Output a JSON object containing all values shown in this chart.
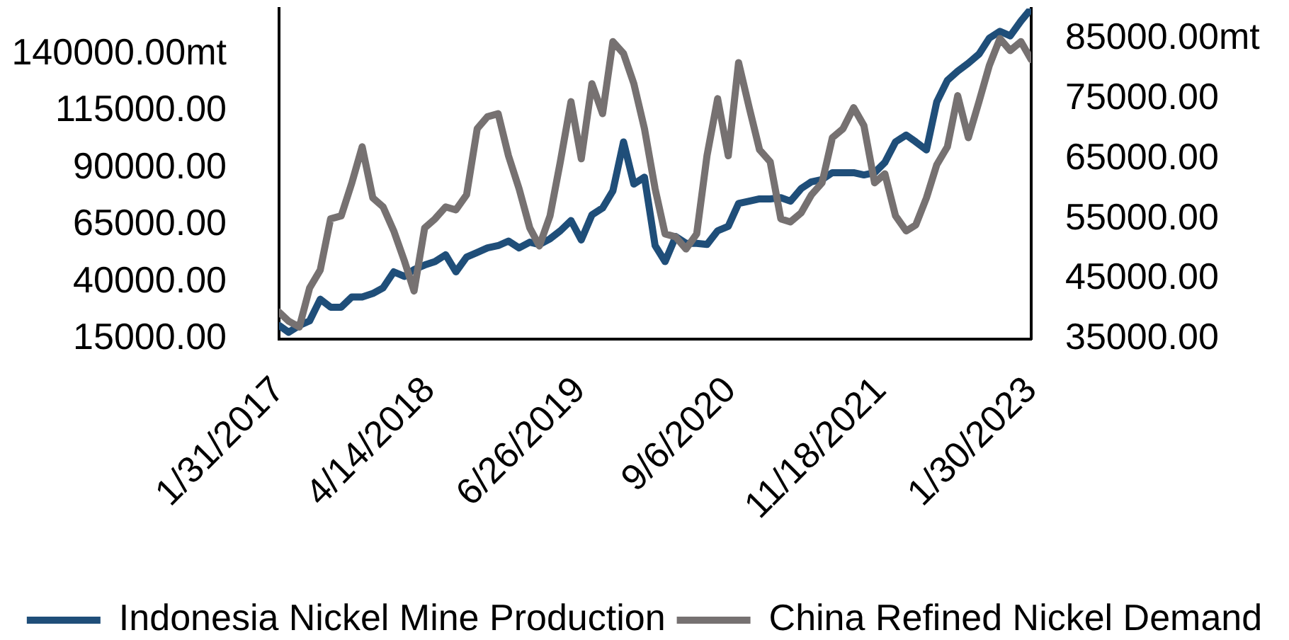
{
  "chart_data": {
    "type": "line",
    "x": [
      "2017-01-31",
      "2017-02-28",
      "2017-03-31",
      "2017-04-30",
      "2017-05-31",
      "2017-06-30",
      "2017-07-31",
      "2017-08-31",
      "2017-09-30",
      "2017-10-31",
      "2017-11-30",
      "2017-12-31",
      "2018-01-31",
      "2018-02-28",
      "2018-03-31",
      "2018-04-30",
      "2018-05-31",
      "2018-06-30",
      "2018-07-31",
      "2018-08-31",
      "2018-09-30",
      "2018-10-31",
      "2018-11-30",
      "2018-12-31",
      "2019-01-31",
      "2019-02-28",
      "2019-03-31",
      "2019-04-30",
      "2019-05-31",
      "2019-06-30",
      "2019-07-31",
      "2019-08-31",
      "2019-09-30",
      "2019-10-31",
      "2019-11-30",
      "2019-12-31",
      "2020-01-31",
      "2020-02-29",
      "2020-03-31",
      "2020-04-30",
      "2020-05-31",
      "2020-06-30",
      "2020-07-31",
      "2020-08-31",
      "2020-09-30",
      "2020-10-31",
      "2020-11-30",
      "2020-12-31",
      "2021-01-31",
      "2021-02-28",
      "2021-03-31",
      "2021-04-30",
      "2021-05-31",
      "2021-06-30",
      "2021-07-31",
      "2021-08-31",
      "2021-09-30",
      "2021-10-31",
      "2021-11-30",
      "2021-12-31",
      "2022-01-31",
      "2022-02-28",
      "2022-03-31",
      "2022-04-30",
      "2022-05-31",
      "2022-06-30",
      "2022-07-31",
      "2022-08-31",
      "2022-09-30",
      "2022-10-31",
      "2022-11-30",
      "2022-12-31",
      "2023-01-30"
    ],
    "series": [
      {
        "name": "Indonesia Nickel Mine Production",
        "color": "#1f4e79",
        "values": [
          21000,
          18000,
          21000,
          23000,
          32500,
          29000,
          29000,
          33500,
          33500,
          35000,
          37500,
          44500,
          42500,
          45500,
          47500,
          49000,
          52000,
          44500,
          51000,
          53000,
          55000,
          56000,
          58000,
          55000,
          57500,
          56500,
          59000,
          62500,
          67000,
          58500,
          69500,
          72500,
          80000,
          101500,
          83000,
          86000,
          56000,
          49000,
          60000,
          57000,
          57000,
          56500,
          62500,
          64500,
          74500,
          75500,
          76500,
          76500,
          77000,
          75500,
          81000,
          84000,
          85000,
          88000,
          88000,
          88000,
          87000,
          88000,
          92500,
          101500,
          104500,
          101500,
          98000,
          119000,
          128500,
          132500,
          136000,
          140000,
          147000,
          150000,
          148000,
          154500,
          160000
        ]
      },
      {
        "name": "China Refined Nickel Demand",
        "color": "#767171",
        "axis": "y2",
        "values": [
          39500,
          38000,
          37000,
          43500,
          46500,
          55000,
          55500,
          61000,
          67000,
          58500,
          57000,
          53000,
          48000,
          43000,
          53500,
          55000,
          57000,
          56500,
          59000,
          70000,
          72000,
          72500,
          65500,
          60000,
          53500,
          50500,
          55500,
          64500,
          74500,
          65000,
          77500,
          72500,
          84500,
          82500,
          77500,
          70000,
          60000,
          52500,
          52000,
          50000,
          52500,
          65500,
          75000,
          65500,
          81000,
          73500,
          66500,
          64500,
          55000,
          54500,
          56000,
          59000,
          61000,
          68500,
          70000,
          73500,
          70500,
          61000,
          62500,
          55500,
          53000,
          54000,
          58500,
          64000,
          67000,
          75500,
          68500,
          74500,
          80500,
          85000,
          83000,
          84500,
          81500
        ]
      }
    ],
    "xlim": [
      "2017-01-31",
      "2023-01-30"
    ],
    "xticks": [
      {
        "value": "2017-01-31",
        "label": "1/31/2017"
      },
      {
        "value": "2018-04-14",
        "label": "4/14/2018"
      },
      {
        "value": "2019-06-26",
        "label": "6/26/2019"
      },
      {
        "value": "2020-09-06",
        "label": "9/6/2020"
      },
      {
        "value": "2021-11-18",
        "label": "11/18/2021"
      },
      {
        "value": "2023-01-30",
        "label": "1/30/2023"
      }
    ],
    "ylim": [
      15000,
      160000
    ],
    "yticks": [
      {
        "value": 15000,
        "label": "15000.00"
      },
      {
        "value": 40000,
        "label": "40000.00"
      },
      {
        "value": 65000,
        "label": "65000.00"
      },
      {
        "value": 90000,
        "label": "90000.00"
      },
      {
        "value": 115000,
        "label": "115000.00"
      },
      {
        "value": 140000,
        "label": "140000.00mt"
      }
    ],
    "y2lim": [
      35000,
      90000
    ],
    "y2ticks": [
      {
        "value": 35000,
        "label": "35000.00"
      },
      {
        "value": 45000,
        "label": "45000.00"
      },
      {
        "value": 55000,
        "label": "55000.00"
      },
      {
        "value": 65000,
        "label": "65000.00"
      },
      {
        "value": 75000,
        "label": "75000.00"
      },
      {
        "value": 85000,
        "label": "85000.00mt"
      }
    ],
    "legend": "bottom",
    "marker": "none"
  }
}
